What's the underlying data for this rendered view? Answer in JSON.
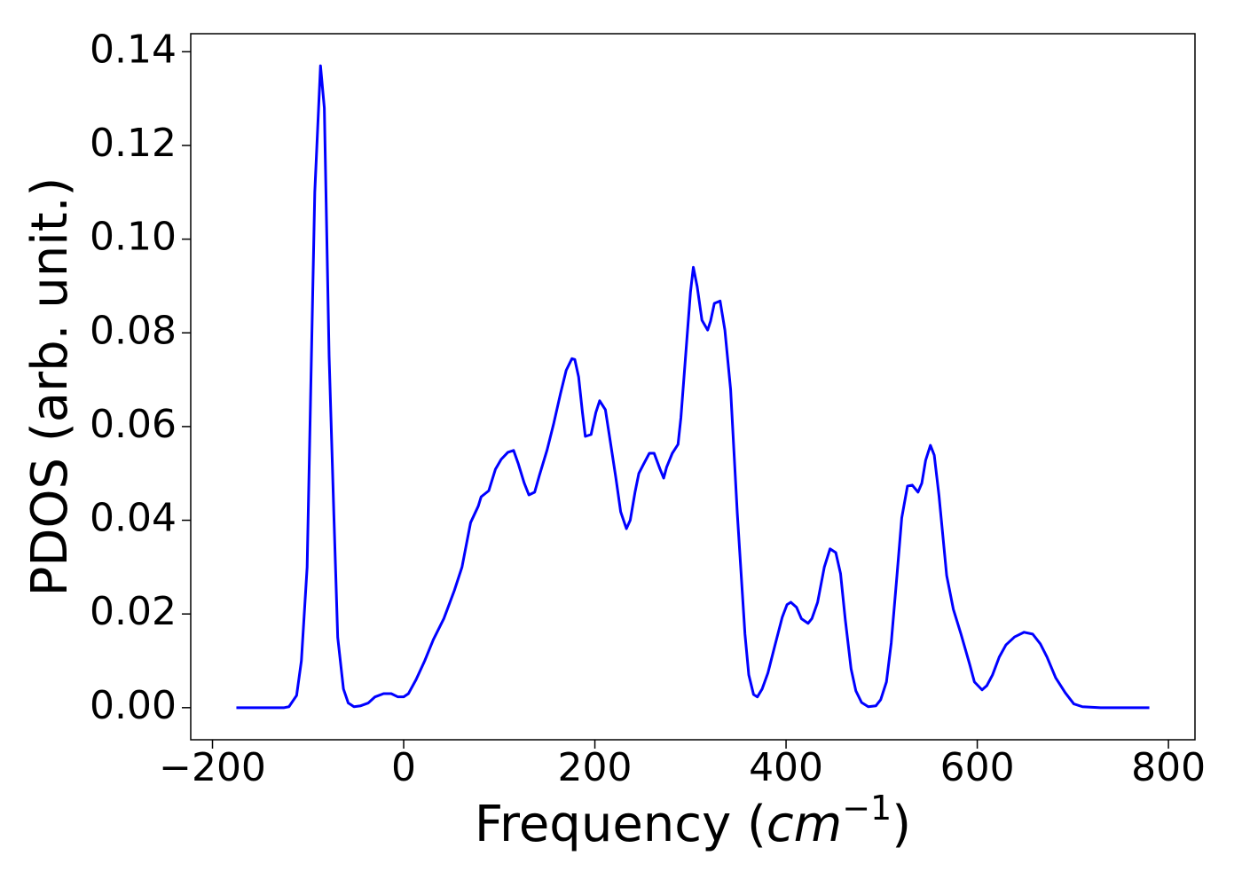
{
  "chart_data": {
    "type": "line",
    "xlabel": {
      "text": "Frequency (",
      "unit": "cm",
      "exponent": "−1",
      "close": ")"
    },
    "ylabel": "PDOS (arb. unit.)",
    "xlim": [
      -222.75,
      827.75
    ],
    "ylim": [
      -0.00685,
      0.14385
    ],
    "xticks": [
      {
        "value": -200,
        "label": "−200"
      },
      0,
      200,
      400,
      600,
      800
    ],
    "yticks": [
      {
        "value": 0,
        "label": "0.00"
      },
      {
        "value": 0.02,
        "label": "0.02"
      },
      {
        "value": 0.04,
        "label": "0.04"
      },
      {
        "value": 0.06,
        "label": "0.06"
      },
      {
        "value": 0.08,
        "label": "0.08"
      },
      {
        "value": 0.1,
        "label": "0.10"
      },
      {
        "value": 0.12,
        "label": "0.12"
      },
      {
        "value": 0.14,
        "label": "0.14"
      }
    ],
    "grid": false,
    "series": [
      {
        "color": "#0000ff",
        "x": [
          -175,
          -125,
          -120,
          -112,
          -107,
          -101,
          -93,
          -87,
          -83,
          -78,
          -73,
          -69,
          -63,
          -58,
          -52,
          -45,
          -37,
          -30,
          -21,
          -13,
          -6,
          0,
          5,
          13,
          22,
          31,
          42,
          53,
          61,
          70,
          78,
          81,
          89,
          96,
          102,
          109,
          115,
          120,
          126,
          131,
          137,
          142,
          150,
          157,
          164,
          170,
          176,
          179,
          183,
          187,
          190,
          196,
          201,
          205,
          211,
          216,
          222,
          227,
          233,
          237,
          242,
          246,
          251,
          257,
          262,
          268,
          272,
          275,
          281,
          287,
          290,
          296,
          300,
          303,
          307,
          312,
          318,
          321,
          325,
          331,
          336,
          342,
          349,
          357,
          361,
          366,
          370,
          375,
          381,
          388,
          396,
          401,
          405,
          411,
          416,
          423,
          427,
          433,
          440,
          446,
          452,
          457,
          462,
          468,
          473,
          479,
          486,
          494,
          499,
          505,
          510,
          516,
          521,
          527,
          532,
          538,
          542,
          546,
          551,
          555,
          560,
          568,
          575,
          583,
          592,
          597,
          605,
          610,
          616,
          623,
          630,
          639,
          649,
          658,
          666,
          673,
          682,
          692,
          701,
          710,
          729,
          780
        ],
        "values": [
          0,
          0,
          0.0002,
          0.0026,
          0.01,
          0.03,
          0.11,
          0.137,
          0.128,
          0.075,
          0.041,
          0.015,
          0.004,
          0.001,
          0.0002,
          0.0004,
          0.001,
          0.0023,
          0.003,
          0.003,
          0.0023,
          0.0023,
          0.003,
          0.006,
          0.01,
          0.0145,
          0.019,
          0.025,
          0.03,
          0.0395,
          0.043,
          0.045,
          0.0463,
          0.0509,
          0.053,
          0.0545,
          0.0549,
          0.052,
          0.048,
          0.0454,
          0.046,
          0.0496,
          0.055,
          0.0607,
          0.067,
          0.072,
          0.0745,
          0.0743,
          0.0706,
          0.063,
          0.0579,
          0.0583,
          0.063,
          0.0655,
          0.0636,
          0.057,
          0.049,
          0.0418,
          0.0382,
          0.04,
          0.046,
          0.05,
          0.052,
          0.0543,
          0.0543,
          0.051,
          0.049,
          0.0513,
          0.0543,
          0.0562,
          0.0619,
          0.078,
          0.0887,
          0.094,
          0.0899,
          0.0827,
          0.0806,
          0.0825,
          0.0863,
          0.0868,
          0.0806,
          0.0679,
          0.0414,
          0.0157,
          0.007,
          0.0028,
          0.0023,
          0.004,
          0.0074,
          0.013,
          0.0193,
          0.022,
          0.0225,
          0.0214,
          0.019,
          0.018,
          0.019,
          0.0225,
          0.03,
          0.0339,
          0.0331,
          0.0286,
          0.0187,
          0.0083,
          0.0036,
          0.0011,
          0.0002,
          0.0004,
          0.0017,
          0.0055,
          0.0138,
          0.0282,
          0.0405,
          0.0473,
          0.0475,
          0.046,
          0.0479,
          0.0528,
          0.056,
          0.0539,
          0.0452,
          0.0282,
          0.021,
          0.0157,
          0.0093,
          0.0055,
          0.0038,
          0.0047,
          0.007,
          0.0108,
          0.0134,
          0.0151,
          0.0161,
          0.0157,
          0.0136,
          0.0108,
          0.0064,
          0.0032,
          0.0008,
          0.0002,
          0,
          0
        ]
      }
    ]
  }
}
